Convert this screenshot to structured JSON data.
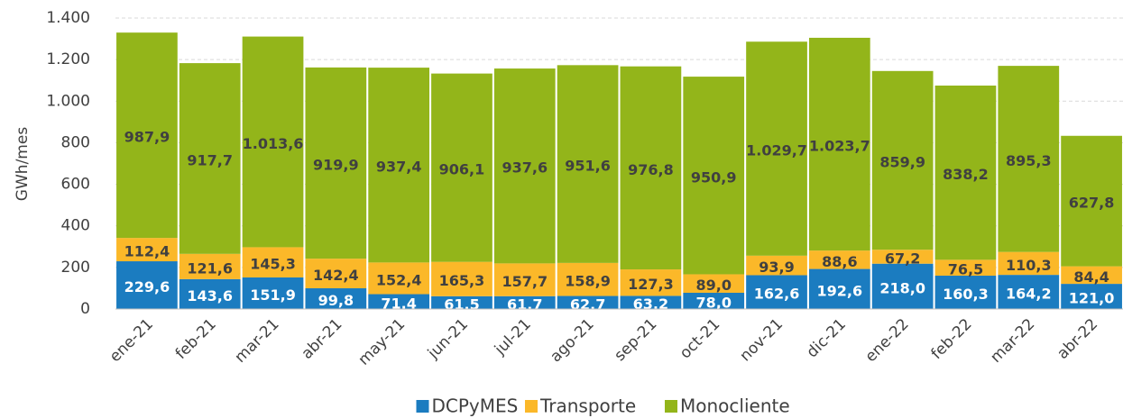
{
  "chart_data": {
    "type": "stacked_bar",
    "y_label": "GWh/mes",
    "categories": [
      "ene-21",
      "feb-21",
      "mar-21",
      "abr-21",
      "may-21",
      "jun-21",
      "jul-21",
      "ago-21",
      "sep-21",
      "oct-21",
      "nov-21",
      "dic-21",
      "ene-22",
      "feb-22",
      "mar-22",
      "abr-22"
    ],
    "series": [
      {
        "name": "DCPyMES",
        "color": "#1b7cc0",
        "values": [
          229.6,
          143.6,
          151.9,
          99.8,
          71.4,
          61.5,
          61.7,
          62.7,
          63.2,
          78.0,
          162.6,
          192.6,
          218.0,
          160.3,
          164.2,
          121.0
        ],
        "value_labels": [
          "229,6",
          "143,6",
          "151,9",
          "99,8",
          "71,4",
          "61,5",
          "61,7",
          "62,7",
          "63,2",
          "78,0",
          "162,6",
          "192,6",
          "218,0",
          "160,3",
          "164,2",
          "121,0"
        ]
      },
      {
        "name": "Transporte",
        "color": "#fbb829",
        "values": [
          112.4,
          121.6,
          145.3,
          142.4,
          152.4,
          165.3,
          157.7,
          158.9,
          127.3,
          89.0,
          93.9,
          88.6,
          67.2,
          76.5,
          110.3,
          84.4
        ],
        "value_labels": [
          "112,4",
          "121,6",
          "145,3",
          "142,4",
          "152,4",
          "165,3",
          "157,7",
          "158,9",
          "127,3",
          "89,0",
          "93,9",
          "88,6",
          "67,2",
          "76,5",
          "110,3",
          "84,4"
        ]
      },
      {
        "name": "Monocliente",
        "color": "#93b51a",
        "values": [
          987.9,
          917.7,
          1013.6,
          919.9,
          937.4,
          906.1,
          937.6,
          951.6,
          976.8,
          950.9,
          1029.7,
          1023.7,
          859.9,
          838.2,
          895.3,
          627.8
        ],
        "value_labels": [
          "987,9",
          "917,7",
          "1.013,6",
          "919,9",
          "937,4",
          "906,1",
          "937,6",
          "951,6",
          "976,8",
          "950,9",
          "1.029,7",
          "1.023,7",
          "859,9",
          "838,2",
          "895,3",
          "627,8"
        ]
      }
    ],
    "ylim": [
      0,
      1400
    ],
    "yticks": [
      0,
      200,
      400,
      600,
      800,
      {
        "value": 1000,
        "label": "1.000"
      },
      {
        "value": 1200,
        "label": "1.200"
      },
      {
        "value": 1400,
        "label": "1.400"
      }
    ],
    "grid": true,
    "legend": "bottom"
  }
}
